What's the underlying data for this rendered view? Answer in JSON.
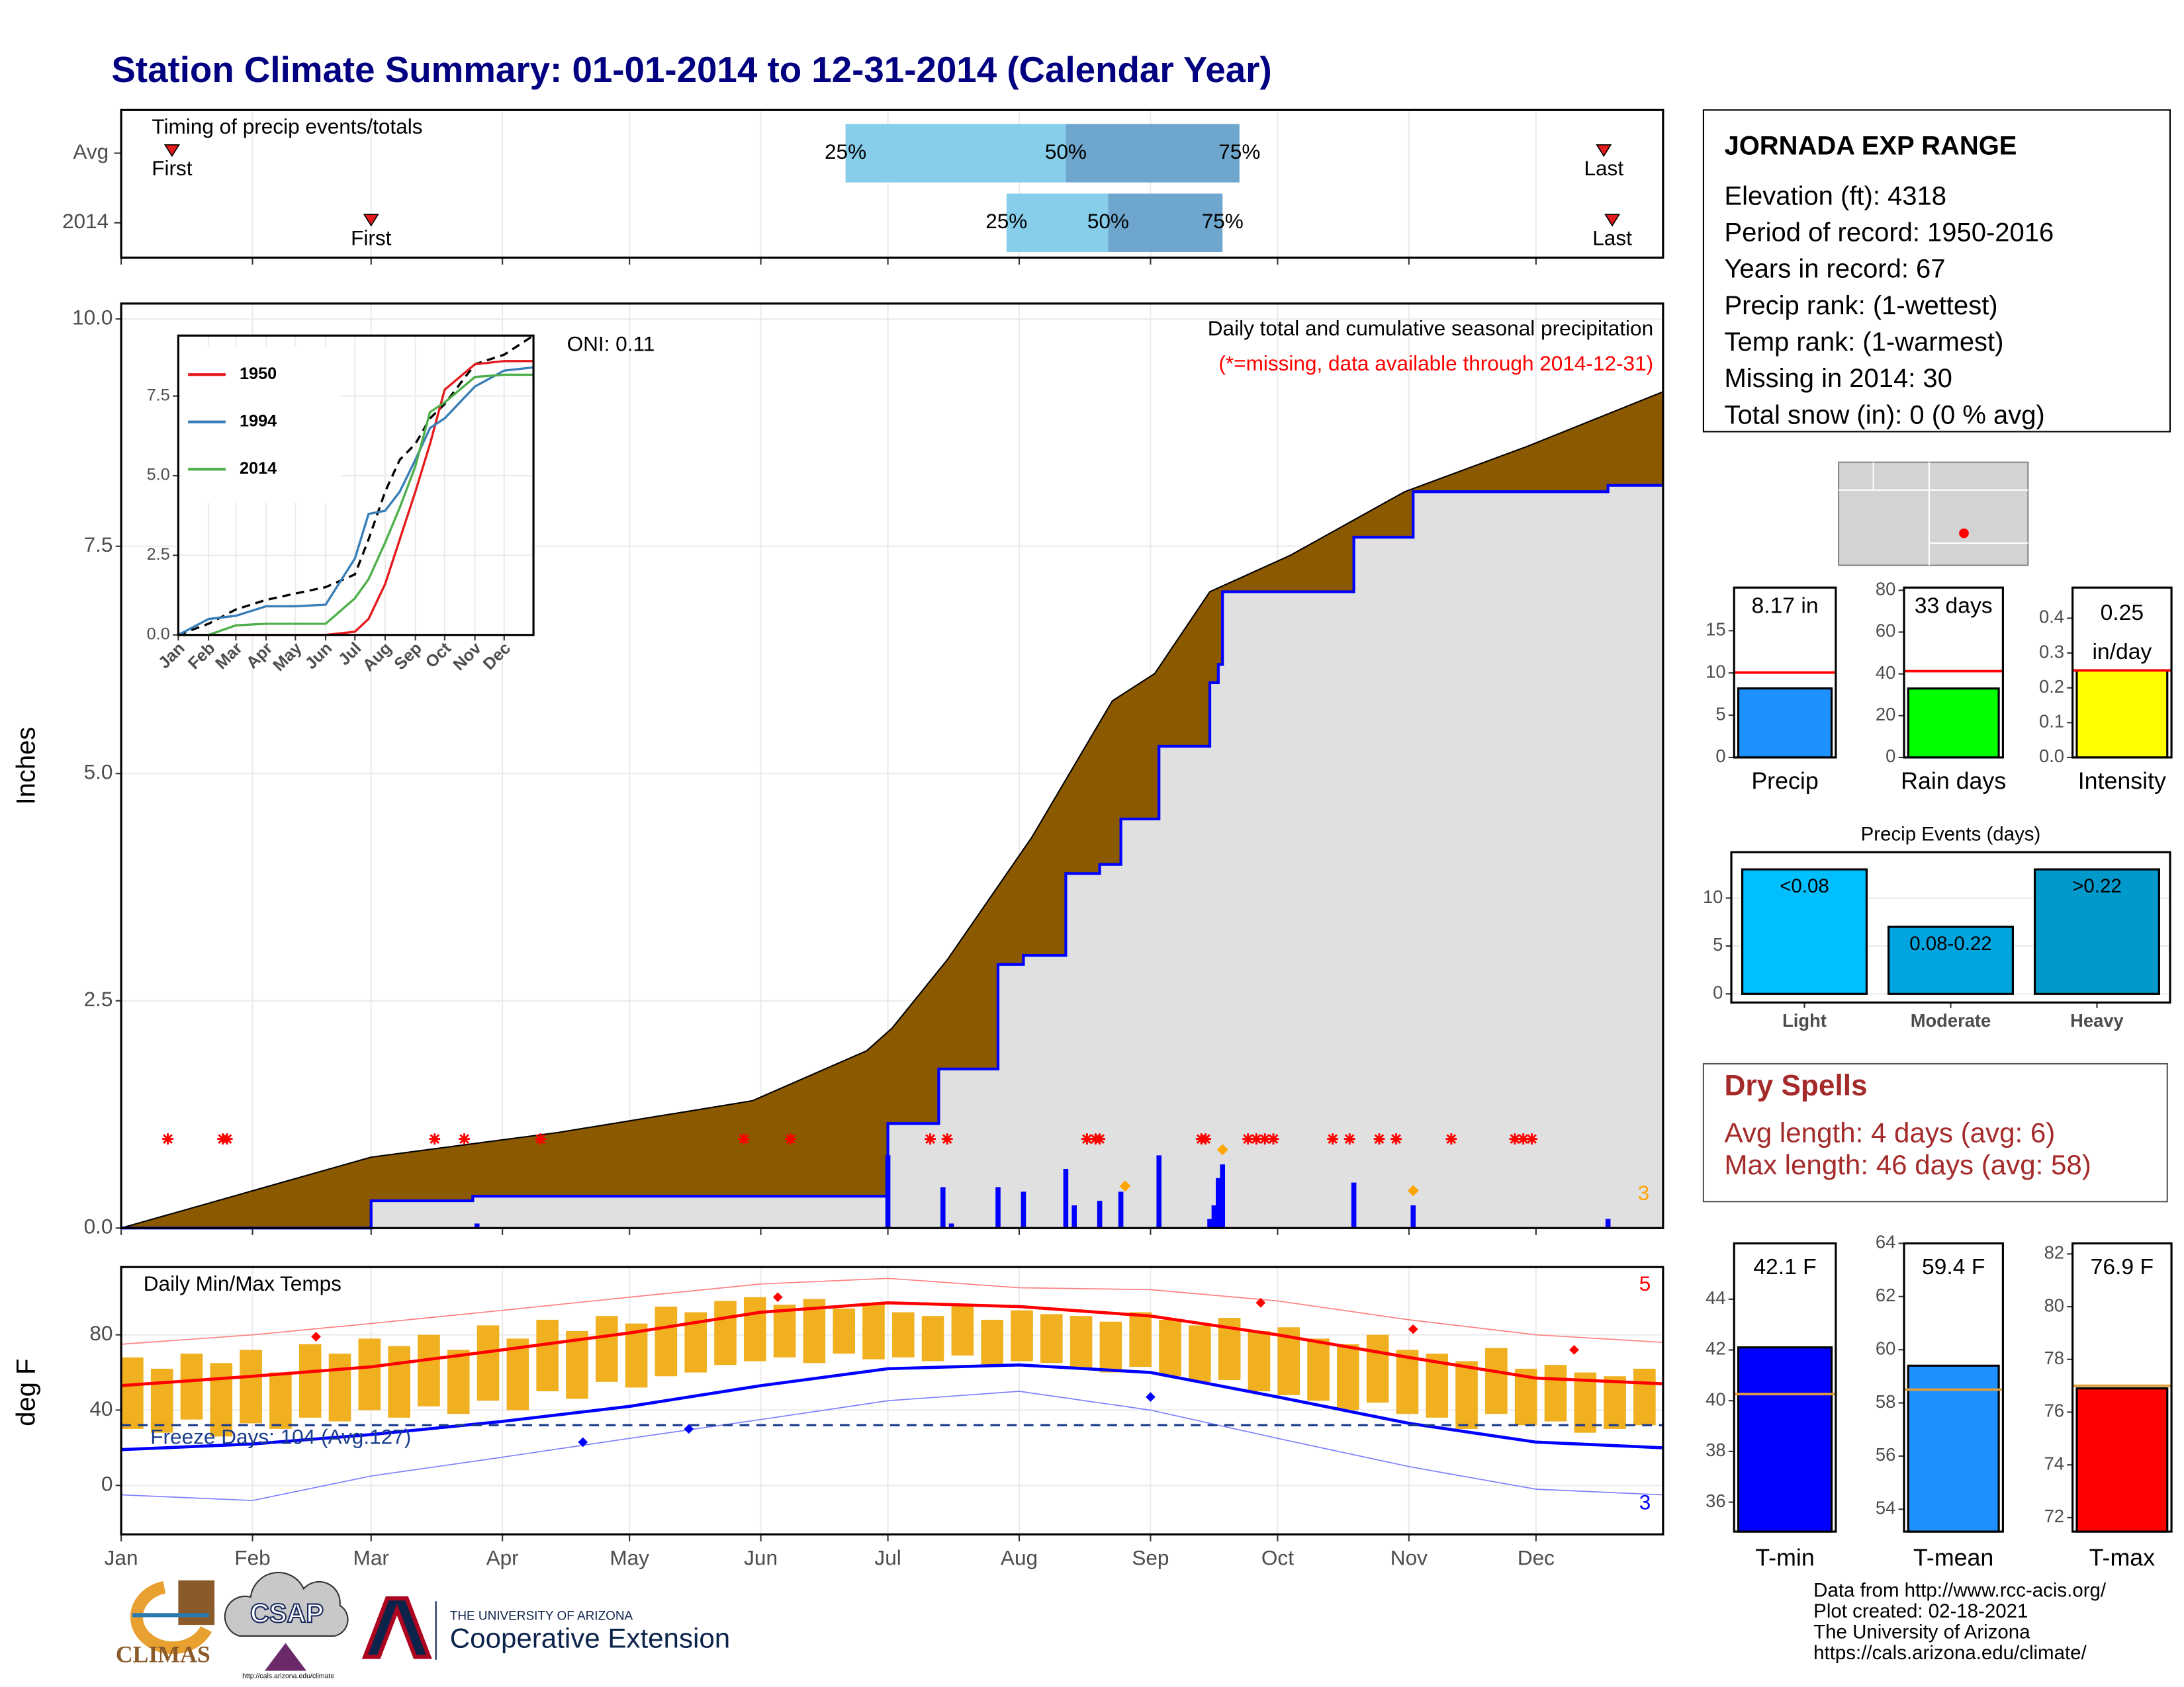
{
  "title": "Station Climate Summary: 01-01-2014 to 12-31-2014 (Calendar Year)",
  "station": {
    "name": "JORNADA EXP RANGE",
    "lines": [
      "Elevation (ft): 4318",
      "Period of record: 1950-2016",
      "Years in record: 67",
      "Precip rank:  (1-wettest)",
      "Temp rank:  (1-warmest)",
      "Missing in 2014: 30",
      "Total snow (in): 0 (0 % avg)"
    ]
  },
  "dry_spells": {
    "title": "Dry Spells",
    "lines": [
      "Avg length: 4 days (avg: 6)",
      "Max length: 46 days (avg: 58)"
    ]
  },
  "credits": [
    "Data from http://www.rcc-acis.org/",
    "Plot created: 02-18-2021",
    "The University of Arizona",
    "https://cals.arizona.edu/climate/"
  ],
  "logos": {
    "climas": "CLIMAS",
    "csap": "CSAP",
    "csap_url": "http://cals.arizona.edu/climate",
    "ua": "THE UNIVERSITY OF ARIZONA",
    "extension": "Cooperative Extension"
  },
  "chart_data": [
    {
      "type": "timing",
      "title": "Timing of precip events/totals",
      "xlim": [
        1,
        365
      ],
      "xticks": [
        1,
        32,
        60,
        91,
        121,
        152,
        182,
        213,
        244,
        274,
        305,
        335
      ],
      "labels": {
        "first": "First",
        "last": "Last",
        "q25": "25%",
        "q50": "50%",
        "q75": "75%"
      },
      "colors": {
        "lower": "#87ceeb",
        "upper": "#6ea6cd",
        "marker": "#e41a1c"
      },
      "rows": [
        {
          "name": "Avg",
          "first": 13,
          "q25": 172,
          "q50": 224,
          "q75": 265,
          "last": 351
        },
        {
          "name": "2014",
          "first": 60,
          "q25": 210,
          "q50": 234,
          "q75": 261,
          "last": 353
        }
      ]
    },
    {
      "type": "cumulative",
      "y_label": "Inches",
      "annotation": "Daily total and cumulative seasonal precipitation",
      "missing_note": "(*=missing, data available through 2014-12-31)",
      "oni": "ONI: 0.11",
      "xlim": [
        1,
        365
      ],
      "xticks": [
        1,
        32,
        60,
        91,
        121,
        152,
        182,
        213,
        244,
        274,
        305,
        335
      ],
      "ylim": [
        0,
        10.17
      ],
      "yticks": [
        {
          "value": 0,
          "label": "0.0"
        },
        2.5,
        {
          "value": 5,
          "label": "5.0"
        },
        7.5,
        {
          "value": 10,
          "label": "10.0"
        }
      ],
      "grid": true,
      "average_color": "#8b5a00",
      "fill_2014": "#e0e0e0",
      "color_2014": "#0000ff",
      "average_cumulative": {
        "x": [
          1,
          60,
          104,
          150,
          177,
          183,
          196,
          216,
          235,
          245,
          258,
          277,
          304,
          333,
          365
        ],
        "values": [
          0,
          0.78,
          1.05,
          1.4,
          1.95,
          2.2,
          2.95,
          4.3,
          5.8,
          6.1,
          7.0,
          7.4,
          8.1,
          8.6,
          9.2
        ]
      },
      "cumulative_2014": {
        "x": [
          1,
          60,
          60,
          84,
          84,
          182,
          182,
          194,
          194,
          208,
          208,
          214,
          214,
          224,
          224,
          232,
          232,
          237,
          237,
          246,
          246,
          258,
          258,
          260,
          260,
          261,
          261,
          292,
          292,
          306,
          306,
          352,
          352,
          365
        ],
        "values": [
          0,
          0,
          0.3,
          0.3,
          0.35,
          0.35,
          1.15,
          1.15,
          1.75,
          1.75,
          2.9,
          2.9,
          3.0,
          3.0,
          3.9,
          3.9,
          4.0,
          4.0,
          4.5,
          4.5,
          5.3,
          5.3,
          6.0,
          6.0,
          6.2,
          6.2,
          7.0,
          7.0,
          7.6,
          7.6,
          8.1,
          8.1,
          8.17,
          8.17
        ]
      },
      "daily": {
        "x": [
          85,
          182,
          195,
          197,
          208,
          214,
          224,
          226,
          232,
          237,
          246,
          258,
          259,
          260,
          261,
          292,
          306,
          352
        ],
        "values": [
          0.05,
          0.8,
          0.45,
          0.05,
          0.45,
          0.4,
          0.65,
          0.25,
          0.3,
          0.4,
          0.8,
          0.1,
          0.25,
          0.55,
          0.7,
          0.5,
          0.25,
          0.1
        ]
      },
      "missing_days": [
        12,
        25,
        26,
        75,
        82,
        100,
        148,
        159,
        192,
        196,
        229,
        231,
        232,
        256,
        257,
        267,
        269,
        271,
        273,
        287,
        291,
        298,
        302,
        315,
        330,
        332,
        334
      ],
      "record_days": {
        "x": [
          238,
          261,
          306
        ],
        "values": [
          0.37,
          0.77,
          0.32
        ]
      },
      "record_color": "#ffa500",
      "record_count": 3
    },
    {
      "type": "line",
      "xlim": [
        1,
        365
      ],
      "xticks": [
        {
          "value": 1,
          "label": "Jan"
        },
        {
          "value": 32,
          "label": "Feb"
        },
        {
          "value": 60,
          "label": "Mar"
        },
        {
          "value": 91,
          "label": "Apr"
        },
        {
          "value": 121,
          "label": "May"
        },
        {
          "value": 152,
          "label": "Jun"
        },
        {
          "value": 182,
          "label": "Jul"
        },
        {
          "value": 213,
          "label": "Aug"
        },
        {
          "value": 244,
          "label": "Sep"
        },
        {
          "value": 274,
          "label": "Oct"
        },
        {
          "value": 305,
          "label": "Nov"
        },
        {
          "value": 335,
          "label": "Dec"
        }
      ],
      "ylim": [
        0,
        9.4
      ],
      "yticks": [
        {
          "value": 0,
          "label": "0.0"
        },
        2.5,
        {
          "value": 5,
          "label": "5.0"
        },
        7.5
      ],
      "x": [
        1,
        32,
        60,
        91,
        121,
        152,
        182,
        196,
        213,
        228,
        244,
        259,
        274,
        305,
        335,
        365
      ],
      "average": [
        0,
        0.35,
        0.8,
        1.1,
        1.3,
        1.5,
        1.9,
        3.0,
        4.5,
        5.5,
        6.0,
        6.8,
        7.25,
        8.5,
        8.8,
        9.4
      ],
      "series": [
        {
          "name": "1950",
          "color": "#e41a1c",
          "values": [
            0,
            0,
            0,
            0,
            0,
            0,
            0.1,
            0.5,
            1.6,
            3.0,
            4.5,
            6.0,
            7.7,
            8.5,
            8.6,
            8.6
          ]
        },
        {
          "name": "1994",
          "color": "#377eb8",
          "values": [
            0,
            0.5,
            0.6,
            0.9,
            0.9,
            0.95,
            2.4,
            3.8,
            3.9,
            4.5,
            5.5,
            6.5,
            6.8,
            7.8,
            8.3,
            8.4
          ]
        },
        {
          "name": "2014",
          "color": "#4daf4a",
          "values": [
            0,
            0,
            0.3,
            0.35,
            0.35,
            0.35,
            1.15,
            1.75,
            2.9,
            4.0,
            5.3,
            7.0,
            7.3,
            8.1,
            8.17,
            8.17
          ]
        }
      ]
    },
    {
      "type": "gauge",
      "categories": [
        "Precip"
      ],
      "values": [
        8.17
      ],
      "value_labels": [
        "8.17 in"
      ],
      "average": 10.05,
      "avg_color": "#ff0000",
      "color": "#1e90ff",
      "ylim": [
        0,
        20.1
      ],
      "yticks": [
        0,
        5,
        10,
        15
      ]
    },
    {
      "type": "gauge",
      "categories": [
        "Rain days"
      ],
      "values": [
        33
      ],
      "value_labels": [
        "33 days"
      ],
      "average": 41.3,
      "avg_color": "#ff0000",
      "color": "#00ff00",
      "ylim": [
        0,
        81.3
      ],
      "yticks": [
        0,
        20,
        40,
        60,
        80
      ]
    },
    {
      "type": "gauge",
      "categories": [
        "Intensity"
      ],
      "values": [
        0.25
      ],
      "value_labels": [
        "0.25"
      ],
      "unit_label": "in/day",
      "average": 0.25,
      "avg_color": "#ff0000",
      "color": "#ffff00",
      "ylim": [
        0,
        0.488
      ],
      "yticks": [
        {
          "value": 0,
          "label": "0.0"
        },
        0.1,
        0.2,
        0.3,
        0.4
      ]
    },
    {
      "type": "bar",
      "title": "Precip Events (days)",
      "categories": [
        "Light",
        "Moderate",
        "Heavy"
      ],
      "values": [
        13,
        7,
        13
      ],
      "bar_labels": [
        "<0.08",
        "0.08-0.22",
        ">0.22"
      ],
      "colors": [
        "#00bfff",
        "#00a5e0",
        "#0099cc"
      ],
      "ylim": [
        -0.9,
        14.8
      ],
      "yticks": [
        0,
        5,
        10
      ],
      "grid": true
    },
    {
      "type": "temps",
      "title": "Daily Min/Max Temps",
      "y_label": "deg F",
      "xlim": [
        1,
        365
      ],
      "xticks": [
        {
          "value": 1,
          "label": "Jan"
        },
        {
          "value": 32,
          "label": "Feb"
        },
        {
          "value": 60,
          "label": "Mar"
        },
        {
          "value": 91,
          "label": "Apr"
        },
        {
          "value": 121,
          "label": "May"
        },
        {
          "value": 152,
          "label": "Jun"
        },
        {
          "value": 182,
          "label": "Jul"
        },
        {
          "value": 213,
          "label": "Aug"
        },
        {
          "value": 244,
          "label": "Sep"
        },
        {
          "value": 274,
          "label": "Oct"
        },
        {
          "value": 305,
          "label": "Nov"
        },
        {
          "value": 335,
          "label": "Dec"
        }
      ],
      "ylim": [
        -26,
        116
      ],
      "yticks": [
        0,
        40,
        80
      ],
      "grid": true,
      "bar_color": "#f0b020",
      "x": [
        1,
        8,
        15,
        22,
        29,
        36,
        43,
        50,
        57,
        64,
        71,
        78,
        85,
        92,
        99,
        106,
        113,
        120,
        127,
        134,
        141,
        148,
        155,
        162,
        169,
        176,
        183,
        190,
        197,
        204,
        211,
        218,
        225,
        232,
        239,
        246,
        253,
        260,
        267,
        274,
        281,
        288,
        295,
        302,
        309,
        316,
        323,
        330,
        337,
        344,
        351,
        358
      ],
      "lows": [
        30,
        28,
        35,
        26,
        33,
        30,
        36,
        34,
        40,
        36,
        42,
        38,
        45,
        40,
        50,
        46,
        55,
        52,
        58,
        60,
        64,
        66,
        68,
        65,
        70,
        67,
        68,
        66,
        69,
        64,
        66,
        65,
        62,
        60,
        63,
        58,
        55,
        56,
        50,
        48,
        45,
        40,
        44,
        38,
        36,
        30,
        38,
        32,
        34,
        28,
        30,
        32
      ],
      "highs": [
        68,
        62,
        70,
        65,
        72,
        60,
        75,
        70,
        78,
        74,
        80,
        72,
        85,
        78,
        88,
        82,
        90,
        86,
        95,
        92,
        98,
        100,
        96,
        99,
        94,
        97,
        92,
        90,
        96,
        88,
        93,
        91,
        90,
        87,
        92,
        88,
        85,
        89,
        82,
        84,
        78,
        75,
        80,
        72,
        70,
        66,
        73,
        62,
        64,
        60,
        58,
        62
      ],
      "curve_x": [
        1,
        32,
        60,
        91,
        121,
        152,
        182,
        213,
        244,
        274,
        305,
        335,
        365
      ],
      "normal_max": [
        53,
        58,
        63,
        72,
        81,
        92,
        97,
        95,
        90,
        80,
        68,
        57,
        54
      ],
      "normal_min": [
        19,
        22,
        27,
        34,
        42,
        53,
        62,
        64,
        60,
        47,
        33,
        23,
        20
      ],
      "record_max": [
        75,
        80,
        86,
        93,
        100,
        107,
        110,
        105,
        104,
        98,
        88,
        80,
        76
      ],
      "record_min": [
        -5,
        -8,
        5,
        15,
        25,
        35,
        45,
        50,
        40,
        25,
        10,
        -2,
        -5
      ],
      "record_highs": {
        "x": [
          47,
          156,
          270,
          306,
          344
        ],
        "values": [
          79,
          100,
          97,
          83,
          72
        ]
      },
      "record_lows": {
        "x": [
          110,
          135,
          244
        ],
        "values": [
          23,
          30,
          47
        ]
      },
      "record_high_count": 5,
      "record_low_count": 3,
      "freeze_line": 32,
      "freeze_label": "Freeze Days: 104 (Avg.127)"
    },
    {
      "type": "gauge",
      "categories": [
        "T-min"
      ],
      "values": [
        42.1
      ],
      "value_labels": [
        "42.1 F"
      ],
      "average": 40.26,
      "avg_color": "#e0a040",
      "color": "#0000ff",
      "ylim": [
        34.84,
        46.2
      ],
      "yticks": [
        36,
        38,
        40,
        42,
        44
      ]
    },
    {
      "type": "gauge",
      "categories": [
        "T-mean"
      ],
      "values": [
        59.4
      ],
      "value_labels": [
        "59.4 F"
      ],
      "average": 58.5,
      "avg_color": "#e0a040",
      "color": "#1e90ff",
      "ylim": [
        53.16,
        64
      ],
      "yticks": [
        54,
        56,
        58,
        60,
        62,
        64
      ]
    },
    {
      "type": "gauge",
      "categories": [
        "T-max"
      ],
      "values": [
        76.9
      ],
      "value_labels": [
        "76.9 F"
      ],
      "average": 77.0,
      "avg_color": "#e0a040",
      "color": "#ff0000",
      "ylim": [
        71.47,
        82.4
      ],
      "yticks": [
        72,
        74,
        76,
        78,
        80,
        82
      ]
    }
  ]
}
